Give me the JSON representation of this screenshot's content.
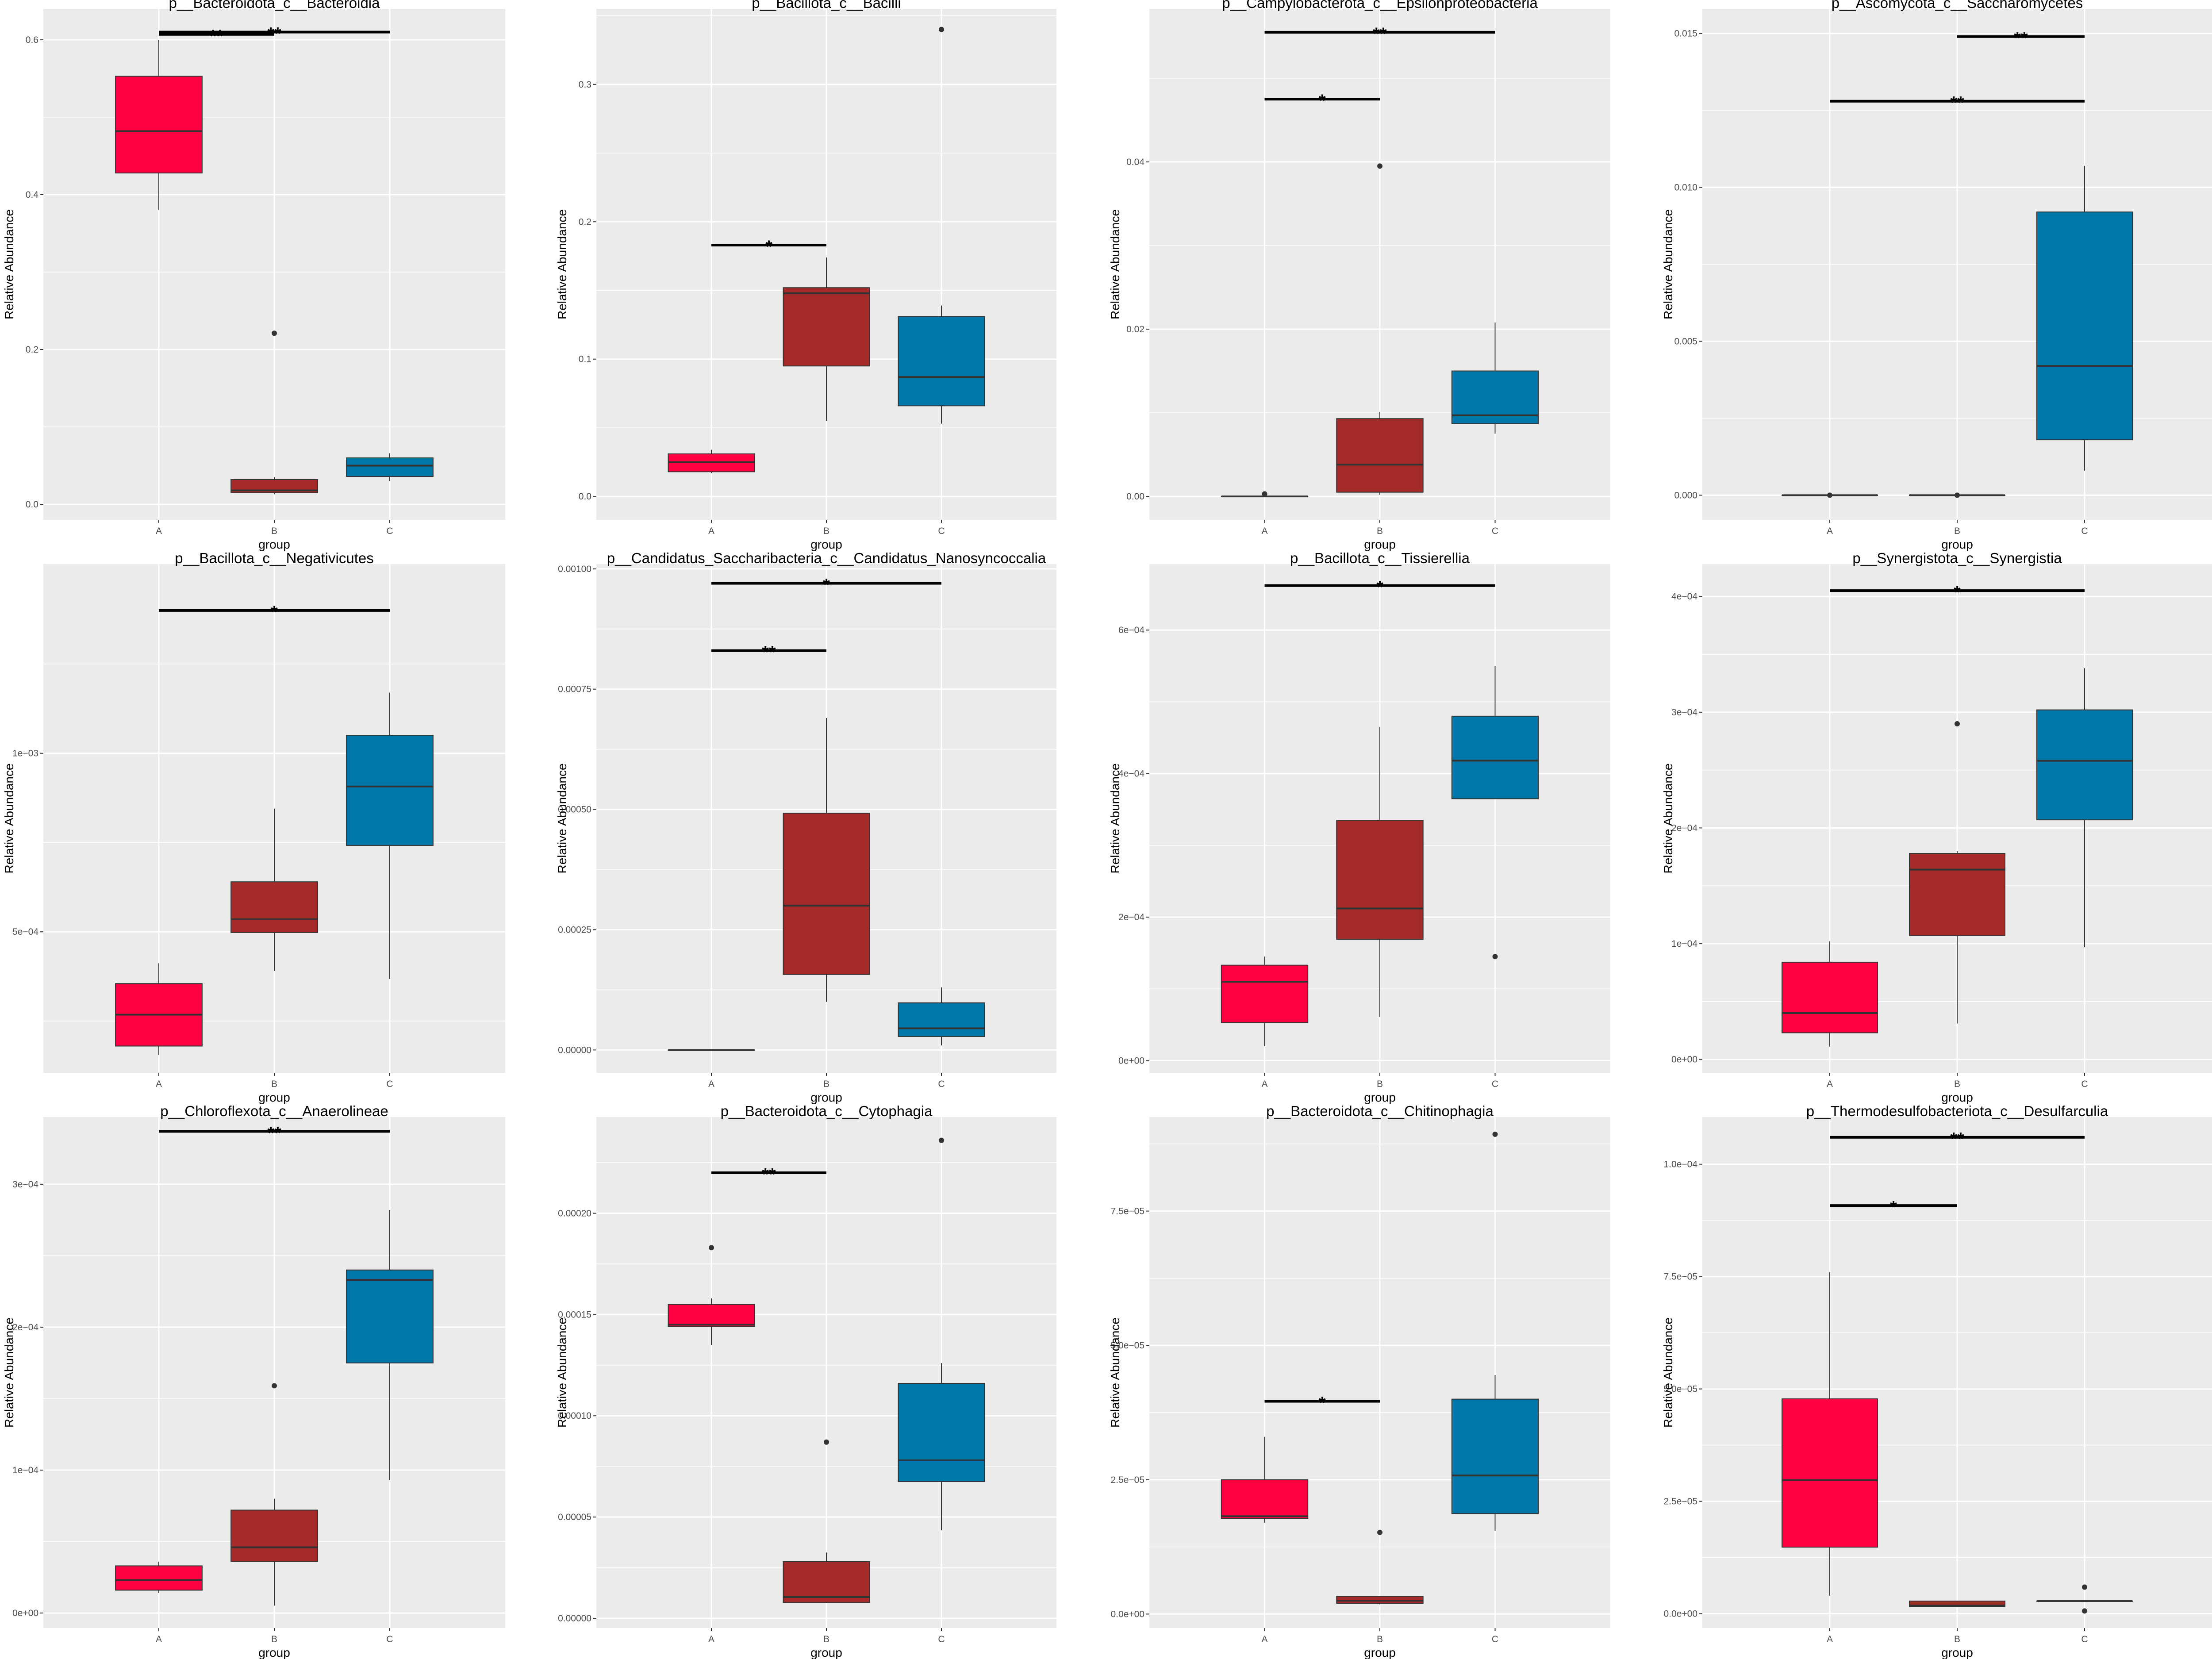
{
  "colors": {
    "A": "#ff0040",
    "B": "#a52a2a",
    "C": "#0077a8",
    "panel_bg": "#ebebeb",
    "grid": "#ffffff"
  },
  "chart_data": [
    {
      "type": "box",
      "title": "p__Bacteroidota_c__Bacteroidia",
      "xlabel": "group",
      "ylabel": "Relative Abundance",
      "ylim": [
        -0.02,
        0.64
      ],
      "yticks": [
        0.0,
        0.2,
        0.4,
        0.6
      ],
      "ytick_labels": [
        "0.0",
        "0.2",
        "0.4",
        "0.6"
      ],
      "categories": [
        "A",
        "B",
        "C"
      ],
      "boxes": [
        {
          "group": "A",
          "min": 0.38,
          "q1": 0.428,
          "median": 0.482,
          "q3": 0.553,
          "max": 0.6,
          "outliers": []
        },
        {
          "group": "B",
          "min": 0.013,
          "q1": 0.015,
          "median": 0.018,
          "q3": 0.032,
          "max": 0.035,
          "outliers": [
            0.221
          ]
        },
        {
          "group": "C",
          "min": 0.03,
          "q1": 0.036,
          "median": 0.05,
          "q3": 0.06,
          "max": 0.066,
          "outliers": []
        }
      ],
      "significance": [
        {
          "from": "A",
          "to": "B",
          "y": 0.607,
          "label": "**"
        },
        {
          "from": "A",
          "to": "C",
          "y": 0.61,
          "label": "**"
        }
      ]
    },
    {
      "type": "box",
      "title": "p__Bacillota_c__Bacilli",
      "xlabel": "group",
      "ylabel": "Relative Abundance",
      "ylim": [
        -0.017,
        0.355
      ],
      "yticks": [
        0.0,
        0.1,
        0.2,
        0.3
      ],
      "ytick_labels": [
        "0.0",
        "0.1",
        "0.2",
        "0.3"
      ],
      "categories": [
        "A",
        "B",
        "C"
      ],
      "boxes": [
        {
          "group": "A",
          "min": 0.017,
          "q1": 0.018,
          "median": 0.025,
          "q3": 0.031,
          "max": 0.034,
          "outliers": []
        },
        {
          "group": "B",
          "min": 0.055,
          "q1": 0.095,
          "median": 0.148,
          "q3": 0.152,
          "max": 0.174,
          "outliers": []
        },
        {
          "group": "C",
          "min": 0.053,
          "q1": 0.066,
          "median": 0.087,
          "q3": 0.131,
          "max": 0.139,
          "outliers": [
            0.34
          ]
        }
      ],
      "significance": [
        {
          "from": "A",
          "to": "B",
          "y": 0.183,
          "label": "*"
        }
      ]
    },
    {
      "type": "box",
      "title": "p__Campylobacterota_c__Epsilonproteobacteria",
      "xlabel": "group",
      "ylabel": "Relative Abundance",
      "ylim": [
        -0.0028,
        0.0583
      ],
      "yticks": [
        0.0,
        0.02,
        0.04
      ],
      "ytick_labels": [
        "0.00",
        "0.02",
        "0.04"
      ],
      "categories": [
        "A",
        "B",
        "C"
      ],
      "boxes": [
        {
          "group": "A",
          "min": 0.0,
          "q1": 0.0,
          "median": 0.0,
          "q3": 0.0,
          "max": 0.0,
          "outliers": [
            0.0003
          ]
        },
        {
          "group": "B",
          "min": 0.0002,
          "q1": 0.0005,
          "median": 0.0038,
          "q3": 0.0093,
          "max": 0.0101,
          "outliers": [
            0.0395
          ]
        },
        {
          "group": "C",
          "min": 0.0075,
          "q1": 0.0087,
          "median": 0.0097,
          "q3": 0.015,
          "max": 0.0208,
          "outliers": []
        }
      ],
      "significance": [
        {
          "from": "A",
          "to": "B",
          "y": 0.0475,
          "label": "*"
        },
        {
          "from": "A",
          "to": "C",
          "y": 0.0555,
          "label": "**"
        }
      ]
    },
    {
      "type": "box",
      "title": "p__Ascomycota_c__Saccharomycetes",
      "xlabel": "group",
      "ylabel": "Relative Abundance",
      "ylim": [
        -0.0008,
        0.0158
      ],
      "yticks": [
        0.0,
        0.005,
        0.01,
        0.015
      ],
      "ytick_labels": [
        "0.000",
        "0.005",
        "0.010",
        "0.015"
      ],
      "categories": [
        "A",
        "B",
        "C"
      ],
      "boxes": [
        {
          "group": "A",
          "min": 0.0,
          "q1": 0.0,
          "median": 0.0,
          "q3": 0.0,
          "max": 0.0,
          "outliers": [
            0.0
          ]
        },
        {
          "group": "B",
          "min": 0.0,
          "q1": 0.0,
          "median": 0.0,
          "q3": 0.0,
          "max": 0.0,
          "outliers": [
            0.0
          ]
        },
        {
          "group": "C",
          "min": 0.0008,
          "q1": 0.0018,
          "median": 0.0042,
          "q3": 0.0092,
          "max": 0.0107,
          "outliers": []
        }
      ],
      "significance": [
        {
          "from": "A",
          "to": "C",
          "y": 0.0128,
          "label": "**"
        },
        {
          "from": "B",
          "to": "C",
          "y": 0.0149,
          "label": "**"
        }
      ]
    },
    {
      "type": "box",
      "title": "p__Bacillota_c__Negativicutes",
      "xlabel": "group",
      "ylabel": "Relative Abundance",
      "ylim": [
        0.000105,
        0.00153
      ],
      "yticks": [
        0.0005,
        0.001
      ],
      "ytick_labels": [
        "5e−04",
        "1e−03"
      ],
      "categories": [
        "A",
        "B",
        "C"
      ],
      "boxes": [
        {
          "group": "A",
          "min": 0.000155,
          "q1": 0.00018,
          "median": 0.000268,
          "q3": 0.000355,
          "max": 0.000412,
          "outliers": []
        },
        {
          "group": "B",
          "min": 0.00039,
          "q1": 0.000498,
          "median": 0.000535,
          "q3": 0.00064,
          "max": 0.000845,
          "outliers": []
        },
        {
          "group": "C",
          "min": 0.000368,
          "q1": 0.000742,
          "median": 0.000907,
          "q3": 0.00105,
          "max": 0.00117,
          "outliers": []
        }
      ],
      "significance": [
        {
          "from": "A",
          "to": "C",
          "y": 0.0014,
          "label": "*"
        }
      ]
    },
    {
      "type": "box",
      "title": "p__Candidatus_Saccharibacteria_c__Candidatus_Nanosyncoccalia",
      "xlabel": "group",
      "ylabel": "Relative Abundance",
      "ylim": [
        -4.75e-05,
        0.00101
      ],
      "yticks": [
        0.0,
        0.00025,
        0.0005,
        0.00075,
        0.001
      ],
      "ytick_labels": [
        "0.00000",
        "0.00025",
        "0.00050",
        "0.00075",
        "0.00100"
      ],
      "categories": [
        "A",
        "B",
        "C"
      ],
      "boxes": [
        {
          "group": "A",
          "min": 0.0,
          "q1": 0.0,
          "median": 0.0,
          "q3": 0.0,
          "max": 0.0,
          "outliers": []
        },
        {
          "group": "B",
          "min": 0.0001,
          "q1": 0.000157,
          "median": 0.0003,
          "q3": 0.000492,
          "max": 0.00069,
          "outliers": []
        },
        {
          "group": "C",
          "min": 9.5e-06,
          "q1": 2.8e-05,
          "median": 4.5e-05,
          "q3": 9.8e-05,
          "max": 0.00013,
          "outliers": []
        }
      ],
      "significance": [
        {
          "from": "A",
          "to": "B",
          "y": 0.00083,
          "label": "**"
        },
        {
          "from": "A",
          "to": "C",
          "y": 0.00097,
          "label": "*"
        }
      ]
    },
    {
      "type": "box",
      "title": "p__Bacillota_c__Tissierellia",
      "xlabel": "group",
      "ylabel": "Relative Abundance",
      "ylim": [
        -1.7e-05,
        0.000692
      ],
      "yticks": [
        0.0,
        0.0002,
        0.0004,
        0.0006
      ],
      "ytick_labels": [
        "0e+00",
        "2e−04",
        "4e−04",
        "6e−04"
      ],
      "categories": [
        "A",
        "B",
        "C"
      ],
      "boxes": [
        {
          "group": "A",
          "min": 2e-05,
          "q1": 5.3e-05,
          "median": 0.00011,
          "q3": 0.000133,
          "max": 0.000145,
          "outliers": []
        },
        {
          "group": "B",
          "min": 6.1e-05,
          "q1": 0.000169,
          "median": 0.000212,
          "q3": 0.000335,
          "max": 0.000465,
          "outliers": []
        },
        {
          "group": "C",
          "min": 0.000365,
          "q1": 0.000365,
          "median": 0.000418,
          "q3": 0.00048,
          "max": 0.00055,
          "outliers": [
            0.000145
          ]
        }
      ],
      "significance": [
        {
          "from": "A",
          "to": "C",
          "y": 0.000662,
          "label": "*"
        }
      ]
    },
    {
      "type": "box",
      "title": "p__Synergistota_c__Synergistia",
      "xlabel": "group",
      "ylabel": "Relative Abundance",
      "ylim": [
        -1.16e-05,
        0.000428
      ],
      "yticks": [
        0.0,
        0.0001,
        0.0002,
        0.0003,
        0.0004
      ],
      "ytick_labels": [
        "0e+00",
        "1e−04",
        "2e−04",
        "3e−04",
        "4e−04"
      ],
      "categories": [
        "A",
        "B",
        "C"
      ],
      "boxes": [
        {
          "group": "A",
          "min": 1.1e-05,
          "q1": 2.3e-05,
          "median": 4e-05,
          "q3": 8.4e-05,
          "max": 0.000102,
          "outliers": []
        },
        {
          "group": "B",
          "min": 3.1e-05,
          "q1": 0.000107,
          "median": 0.000164,
          "q3": 0.000178,
          "max": 0.00018,
          "outliers": [
            0.00029
          ]
        },
        {
          "group": "C",
          "min": 9.7e-05,
          "q1": 0.000207,
          "median": 0.000258,
          "q3": 0.000302,
          "max": 0.000338,
          "outliers": []
        }
      ],
      "significance": [
        {
          "from": "A",
          "to": "C",
          "y": 0.000405,
          "label": "*"
        }
      ]
    },
    {
      "type": "box",
      "title": "p__Chloroflexota_c__Anaerolineae",
      "xlabel": "group",
      "ylabel": "Relative Abundance",
      "ylim": [
        -1.05e-05,
        0.000347
      ],
      "yticks": [
        0.0,
        0.0001,
        0.0002,
        0.0003
      ],
      "ytick_labels": [
        "0e+00",
        "1e−04",
        "2e−04",
        "3e−04"
      ],
      "categories": [
        "A",
        "B",
        "C"
      ],
      "boxes": [
        {
          "group": "A",
          "min": 1.4e-05,
          "q1": 1.6e-05,
          "median": 2.3e-05,
          "q3": 3.3e-05,
          "max": 3.6e-05,
          "outliers": []
        },
        {
          "group": "B",
          "min": 5.2e-06,
          "q1": 3.6e-05,
          "median": 4.6e-05,
          "q3": 7.2e-05,
          "max": 8e-05,
          "outliers": [
            0.000159
          ]
        },
        {
          "group": "C",
          "min": 9.3e-05,
          "q1": 0.000175,
          "median": 0.000233,
          "q3": 0.00024,
          "max": 0.000282,
          "outliers": []
        }
      ],
      "significance": [
        {
          "from": "A",
          "to": "C",
          "y": 0.000337,
          "label": "**"
        }
      ]
    },
    {
      "type": "box",
      "title": "p__Bacteroidota_c__Cytophagia",
      "xlabel": "group",
      "ylabel": "Relative Abundance",
      "ylim": [
        -4.8e-06,
        0.0002475
      ],
      "yticks": [
        0.0,
        5e-05,
        0.0001,
        0.00015,
        0.0002
      ],
      "ytick_labels": [
        "0.00000",
        "0.00005",
        "0.00010",
        "0.00015",
        "0.00020"
      ],
      "categories": [
        "A",
        "B",
        "C"
      ],
      "boxes": [
        {
          "group": "A",
          "min": 0.000135,
          "q1": 0.000144,
          "median": 0.000145,
          "q3": 0.000155,
          "max": 0.000158,
          "outliers": [
            0.000183
          ]
        },
        {
          "group": "B",
          "min": 7.5e-06,
          "q1": 7.8e-06,
          "median": 1.05e-05,
          "q3": 2.8e-05,
          "max": 3.25e-05,
          "outliers": [
            8.7e-05
          ]
        },
        {
          "group": "C",
          "min": 4.35e-05,
          "q1": 6.75e-05,
          "median": 7.8e-05,
          "q3": 0.000116,
          "max": 0.000126,
          "outliers": [
            0.000236
          ]
        }
      ],
      "significance": [
        {
          "from": "A",
          "to": "B",
          "y": 0.00022,
          "label": "**"
        }
      ]
    },
    {
      "type": "box",
      "title": "p__Bacteroidota_c__Chitinophagia",
      "xlabel": "group",
      "ylabel": "Relative Abundance",
      "ylim": [
        -2.6e-06,
        9.25e-05
      ],
      "yticks": [
        0.0,
        2.5e-05,
        5e-05,
        7.5e-05
      ],
      "ytick_labels": [
        "0.0e+00",
        "2.5e−05",
        "5.0e−05",
        "7.5e−05"
      ],
      "categories": [
        "A",
        "B",
        "C"
      ],
      "boxes": [
        {
          "group": "A",
          "min": 1.7e-05,
          "q1": 1.78e-05,
          "median": 1.82e-05,
          "q3": 2.5e-05,
          "max": 3.3e-05,
          "outliers": []
        },
        {
          "group": "B",
          "min": 1.8e-06,
          "q1": 2e-06,
          "median": 2.5e-06,
          "q3": 3.3e-06,
          "max": 3.4e-06,
          "outliers": [
            1.52e-05
          ]
        },
        {
          "group": "C",
          "min": 1.55e-05,
          "q1": 1.87e-05,
          "median": 2.58e-05,
          "q3": 4e-05,
          "max": 4.45e-05,
          "outliers": [
            8.93e-05
          ]
        }
      ],
      "significance": [
        {
          "from": "A",
          "to": "B",
          "y": 3.96e-05,
          "label": "*"
        }
      ]
    },
    {
      "type": "box",
      "title": "p__Thermodesulfobacteriota_c__Desulfarculia",
      "xlabel": "group",
      "ylabel": "Relative Abundance",
      "ylim": [
        -3.2e-06,
        0.0001105
      ],
      "yticks": [
        0.0,
        2.5e-05,
        5e-05,
        7.5e-05,
        0.0001
      ],
      "ytick_labels": [
        "0.0e+00",
        "2.5e−05",
        "5.0e−05",
        "7.5e−05",
        "1.0e−04"
      ],
      "categories": [
        "A",
        "B",
        "C"
      ],
      "boxes": [
        {
          "group": "A",
          "min": 4e-06,
          "q1": 1.48e-05,
          "median": 2.97e-05,
          "q3": 4.78e-05,
          "max": 7.6e-05,
          "outliers": []
        },
        {
          "group": "B",
          "min": 1.5e-06,
          "q1": 1.6e-06,
          "median": 1.8e-06,
          "q3": 2.8e-06,
          "max": 2.9e-06,
          "outliers": []
        },
        {
          "group": "C",
          "min": 2.8e-06,
          "q1": 2.8e-06,
          "median": 2.8e-06,
          "q3": 2.8e-06,
          "max": 2.8e-06,
          "outliers": [
            5.9e-06,
            6e-07
          ]
        }
      ],
      "significance": [
        {
          "from": "A",
          "to": "B",
          "y": 9.08e-05,
          "label": "*"
        },
        {
          "from": "A",
          "to": "C",
          "y": 0.000106,
          "label": "**"
        }
      ]
    }
  ]
}
